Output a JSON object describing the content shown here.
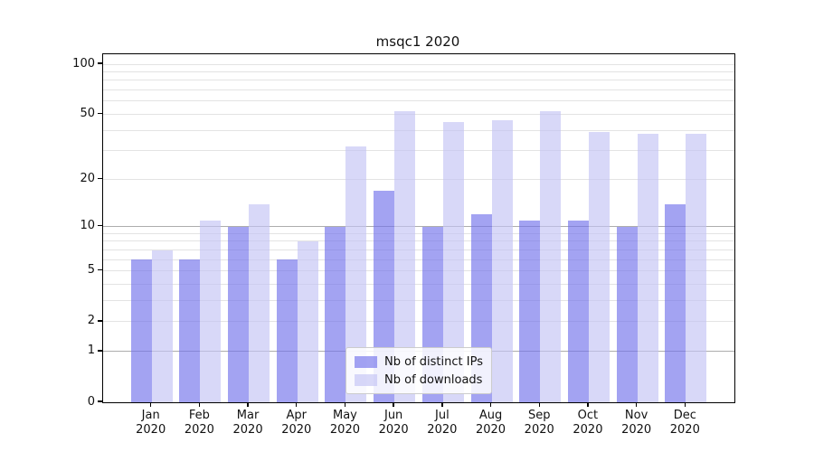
{
  "chart_data": {
    "type": "bar",
    "title": "msqc1 2020",
    "categories": [
      "Jan",
      "Feb",
      "Mar",
      "Apr",
      "May",
      "Jun",
      "Jul",
      "Aug",
      "Sep",
      "Oct",
      "Nov",
      "Dec"
    ],
    "category_year": "2020",
    "series": [
      {
        "name": "Nb of distinct IPs",
        "color": "rgba(113,113,235,0.65)",
        "values": [
          6,
          6,
          10,
          6,
          10,
          17,
          10,
          12,
          11,
          11,
          10,
          14
        ]
      },
      {
        "name": "Nb of downloads",
        "color": "rgba(195,195,244,0.65)",
        "values": [
          7,
          11,
          14,
          8,
          32,
          52,
          45,
          46,
          52,
          39,
          38,
          38
        ]
      }
    ],
    "y_axis": {
      "scale": "log1p",
      "ticks": [
        0,
        1,
        2,
        5,
        10,
        20,
        50,
        100
      ],
      "major_gridlines": [
        1,
        10
      ],
      "minor_gridlines": [
        2,
        3,
        4,
        5,
        6,
        7,
        8,
        9,
        20,
        30,
        40,
        50,
        60,
        70,
        80,
        90,
        100
      ],
      "ymax": 114.7,
      "ymin": 0
    },
    "legend": {
      "location": "lower center",
      "labels": [
        "Nb of distinct IPs",
        "Nb of downloads"
      ]
    },
    "grid": true,
    "style": {
      "major_grid_color": "#adadad",
      "minor_grid_color": "#e3e3e3",
      "spine_color": "#000000",
      "text_color": "#111111",
      "legend_bg": "rgba(255,255,255,0.85)",
      "legend_border": "#cccccc"
    }
  }
}
